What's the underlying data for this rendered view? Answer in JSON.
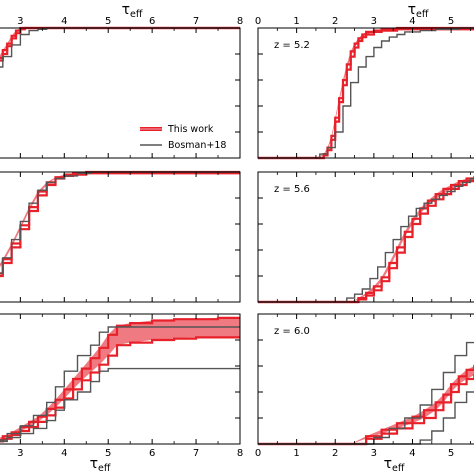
{
  "chart_data": [
    {
      "type": "line",
      "panel": "left-top",
      "xlim": [
        2.4,
        8.0
      ],
      "ylim": [
        0,
        1
      ],
      "xticks": [
        3,
        4,
        5,
        6,
        7,
        8
      ],
      "xlabel_top": "τ_eff",
      "xlabel_bottom": "",
      "annotation": "",
      "legend": {
        "placement": "lower-right",
        "entries": [
          "This work",
          "Bosman+18"
        ]
      },
      "series": [
        {
          "name": "This work",
          "color": "#e8202a",
          "style": "band",
          "x": [
            2.4,
            2.5,
            2.6,
            2.7,
            2.8,
            2.9,
            3.0,
            3.1,
            3.2,
            3.4,
            3.6,
            3.8,
            4.0,
            5.0,
            6.0,
            7.0,
            8.0
          ],
          "lower": [
            0.68,
            0.75,
            0.8,
            0.86,
            0.92,
            0.96,
            0.99,
            1.0,
            1.0,
            1.0,
            1.0,
            1.0,
            1.0,
            1.0,
            1.0,
            1.0,
            1.0
          ],
          "upper": [
            0.7,
            0.77,
            0.83,
            0.88,
            0.94,
            0.98,
            1.0,
            1.0,
            1.0,
            1.0,
            1.0,
            1.0,
            1.0,
            1.0,
            1.0,
            1.0,
            1.0
          ]
        },
        {
          "name": "Bosman+18",
          "color": "#555555",
          "style": "step",
          "x": [
            2.4,
            2.6,
            2.8,
            3.0,
            3.2,
            3.4,
            3.6,
            3.8,
            4.0,
            8.0
          ],
          "y": [
            0.7,
            0.78,
            0.87,
            0.95,
            0.98,
            0.99,
            1.0,
            1.0,
            1.0,
            1.0
          ]
        }
      ]
    },
    {
      "type": "line",
      "panel": "right-top",
      "xlim": [
        0,
        5.8
      ],
      "ylim": [
        0,
        1
      ],
      "xticks": [
        0,
        1,
        2,
        3,
        4,
        5
      ],
      "xlabel_top": "τ_eff",
      "xlabel_bottom": "",
      "annotation": "z = 5.2",
      "series": [
        {
          "name": "This work",
          "color": "#e8202a",
          "style": "band",
          "x": [
            0,
            1.5,
            1.7,
            1.8,
            1.9,
            2.0,
            2.1,
            2.2,
            2.3,
            2.4,
            2.5,
            2.6,
            2.7,
            2.8,
            3.0,
            3.2,
            3.6,
            4.0,
            5.0,
            5.8
          ],
          "lower": [
            0.0,
            0.0,
            0.02,
            0.06,
            0.14,
            0.28,
            0.43,
            0.56,
            0.68,
            0.78,
            0.85,
            0.9,
            0.93,
            0.95,
            0.97,
            0.98,
            0.99,
            0.99,
            0.99,
            0.99
          ],
          "upper": [
            0.0,
            0.0,
            0.03,
            0.08,
            0.17,
            0.31,
            0.46,
            0.6,
            0.72,
            0.82,
            0.88,
            0.92,
            0.95,
            0.97,
            0.98,
            0.99,
            1.0,
            1.0,
            1.0,
            1.0
          ]
        },
        {
          "name": "Bosman+18",
          "color": "#555555",
          "style": "step",
          "x": [
            0,
            1.6,
            1.8,
            2.0,
            2.2,
            2.4,
            2.6,
            2.8,
            3.0,
            3.2,
            3.4,
            3.6,
            3.8,
            4.2,
            4.6,
            5.2,
            5.8
          ],
          "y": [
            0.0,
            0.03,
            0.08,
            0.2,
            0.4,
            0.58,
            0.7,
            0.78,
            0.85,
            0.9,
            0.93,
            0.95,
            0.97,
            0.98,
            0.99,
            1.0,
            1.0
          ]
        }
      ]
    },
    {
      "type": "line",
      "panel": "left-middle",
      "xlim": [
        2.4,
        8.0
      ],
      "ylim": [
        0,
        1
      ],
      "xticks": [
        3,
        4,
        5,
        6,
        7,
        8
      ],
      "xlabel_top": "",
      "xlabel_bottom": "",
      "annotation": "",
      "series": [
        {
          "name": "This work",
          "color": "#e8202a",
          "style": "band",
          "x": [
            2.4,
            2.6,
            2.8,
            3.0,
            3.2,
            3.4,
            3.6,
            3.8,
            4.0,
            4.2,
            4.5,
            5.0,
            5.5,
            6.0,
            7.0,
            8.0
          ],
          "lower": [
            0.2,
            0.3,
            0.42,
            0.56,
            0.7,
            0.82,
            0.9,
            0.95,
            0.97,
            0.98,
            0.99,
            0.99,
            0.99,
            0.99,
            0.99,
            0.99
          ],
          "upper": [
            0.22,
            0.33,
            0.45,
            0.59,
            0.73,
            0.85,
            0.92,
            0.96,
            0.98,
            0.99,
            1.0,
            1.0,
            1.0,
            1.0,
            1.0,
            1.0
          ]
        },
        {
          "name": "Bosman+18",
          "color": "#555555",
          "style": "step",
          "x": [
            2.4,
            2.6,
            2.8,
            3.0,
            3.2,
            3.4,
            3.6,
            3.8,
            4.0,
            4.3,
            4.6,
            5.0,
            8.0
          ],
          "y": [
            0.22,
            0.34,
            0.48,
            0.62,
            0.76,
            0.86,
            0.92,
            0.95,
            0.97,
            0.99,
            1.0,
            1.0,
            1.0
          ]
        }
      ]
    },
    {
      "type": "line",
      "panel": "right-middle",
      "xlim": [
        0,
        5.8
      ],
      "ylim": [
        0,
        1
      ],
      "xticks": [
        0,
        1,
        2,
        3,
        4,
        5
      ],
      "xlabel_top": "",
      "xlabel_bottom": "",
      "annotation": "z = 5.6",
      "series": [
        {
          "name": "This work",
          "color": "#e8202a",
          "style": "band",
          "x": [
            0,
            2.4,
            2.6,
            2.8,
            3.0,
            3.2,
            3.4,
            3.6,
            3.8,
            4.0,
            4.2,
            4.4,
            4.6,
            4.8,
            5.0,
            5.2,
            5.4,
            5.6,
            5.8
          ],
          "lower": [
            0.0,
            0.0,
            0.02,
            0.05,
            0.09,
            0.16,
            0.26,
            0.38,
            0.5,
            0.6,
            0.68,
            0.74,
            0.79,
            0.83,
            0.87,
            0.9,
            0.93,
            0.94,
            0.95
          ],
          "upper": [
            0.0,
            0.0,
            0.03,
            0.07,
            0.12,
            0.19,
            0.3,
            0.42,
            0.54,
            0.64,
            0.72,
            0.78,
            0.83,
            0.87,
            0.9,
            0.93,
            0.95,
            0.96,
            0.97
          ]
        },
        {
          "name": "Bosman+18",
          "color": "#555555",
          "style": "step",
          "x": [
            0,
            2.3,
            2.5,
            2.7,
            2.9,
            3.1,
            3.3,
            3.5,
            3.7,
            3.9,
            4.1,
            4.3,
            4.5,
            4.7,
            4.9,
            5.1,
            5.3,
            5.5,
            5.8
          ],
          "y": [
            0.0,
            0.03,
            0.06,
            0.1,
            0.18,
            0.27,
            0.38,
            0.48,
            0.58,
            0.66,
            0.72,
            0.76,
            0.79,
            0.82,
            0.85,
            0.89,
            0.92,
            0.95,
            0.97
          ]
        }
      ]
    },
    {
      "type": "line",
      "panel": "left-bottom",
      "xlim": [
        2.4,
        8.0
      ],
      "ylim": [
        0,
        1
      ],
      "xticks": [
        3,
        4,
        5,
        6,
        7,
        8
      ],
      "xlabel_top": "",
      "xlabel_bottom": "τ_eff",
      "annotation": "",
      "series": [
        {
          "name": "This work",
          "color": "#e8202a",
          "style": "band",
          "x": [
            2.4,
            2.6,
            2.8,
            3.0,
            3.2,
            3.4,
            3.6,
            3.8,
            4.0,
            4.2,
            4.4,
            4.6,
            4.8,
            5.0,
            5.2,
            5.5,
            6.0,
            6.5,
            7.0,
            7.5,
            8.0
          ],
          "lower": [
            0.02,
            0.04,
            0.07,
            0.1,
            0.13,
            0.17,
            0.22,
            0.28,
            0.35,
            0.42,
            0.49,
            0.55,
            0.61,
            0.68,
            0.76,
            0.78,
            0.8,
            0.81,
            0.82,
            0.82,
            0.82
          ],
          "upper": [
            0.03,
            0.06,
            0.09,
            0.13,
            0.17,
            0.21,
            0.27,
            0.34,
            0.42,
            0.5,
            0.58,
            0.66,
            0.74,
            0.84,
            0.91,
            0.93,
            0.95,
            0.96,
            0.96,
            0.97,
            0.97
          ]
        },
        {
          "name": "Bosman+18",
          "color": "#555555",
          "style": "step",
          "x": [
            2.4,
            2.7,
            3.0,
            3.3,
            3.6,
            3.8,
            4.0,
            4.3,
            4.6,
            4.8,
            5.0,
            8.0
          ],
          "y": [
            0.03,
            0.08,
            0.14,
            0.22,
            0.32,
            0.44,
            0.56,
            0.68,
            0.76,
            0.86,
            0.9,
            0.9
          ],
          "y2": [
            0.02,
            0.05,
            0.08,
            0.12,
            0.18,
            0.26,
            0.34,
            0.4,
            0.48,
            0.56,
            0.58,
            0.58
          ]
        }
      ]
    },
    {
      "type": "line",
      "panel": "right-bottom",
      "xlim": [
        0,
        5.8
      ],
      "ylim": [
        0,
        1
      ],
      "xticks": [
        0,
        1,
        2,
        3,
        4,
        5
      ],
      "xlabel_top": "",
      "xlabel_bottom": "τ_eff",
      "annotation": "z = 6.0",
      "series": [
        {
          "name": "This work",
          "color": "#e8202a",
          "style": "band",
          "x": [
            0,
            2.4,
            2.8,
            3.2,
            3.6,
            4.0,
            4.3,
            4.6,
            4.8,
            5.0,
            5.2,
            5.4,
            5.6,
            5.8
          ],
          "lower": [
            0.0,
            0.0,
            0.04,
            0.08,
            0.12,
            0.16,
            0.2,
            0.26,
            0.32,
            0.4,
            0.46,
            0.5,
            0.53,
            0.55
          ],
          "upper": [
            0.0,
            0.0,
            0.06,
            0.11,
            0.16,
            0.21,
            0.26,
            0.32,
            0.38,
            0.46,
            0.52,
            0.57,
            0.6,
            0.62
          ]
        },
        {
          "name": "Bosman+18",
          "color": "#555555",
          "style": "step",
          "x": [
            0,
            3.0,
            3.4,
            3.8,
            4.2,
            4.5,
            4.8,
            5.1,
            5.4,
            5.8
          ],
          "y": [
            0.0,
            0.05,
            0.12,
            0.2,
            0.3,
            0.42,
            0.55,
            0.68,
            0.78,
            0.82
          ],
          "y2": [
            0.0,
            0.0,
            0.0,
            0.0,
            0.03,
            0.1,
            0.2,
            0.32,
            0.4,
            0.44
          ]
        }
      ]
    }
  ],
  "legend_labels": {
    "this_work": "This work",
    "bosman": "Bosman+18"
  },
  "axis_label": {
    "symbol": "τ",
    "subscript": "eff"
  },
  "colors": {
    "this_work": "#e8202a",
    "this_work_fill": "#f07a82",
    "bosman": "#555555"
  }
}
